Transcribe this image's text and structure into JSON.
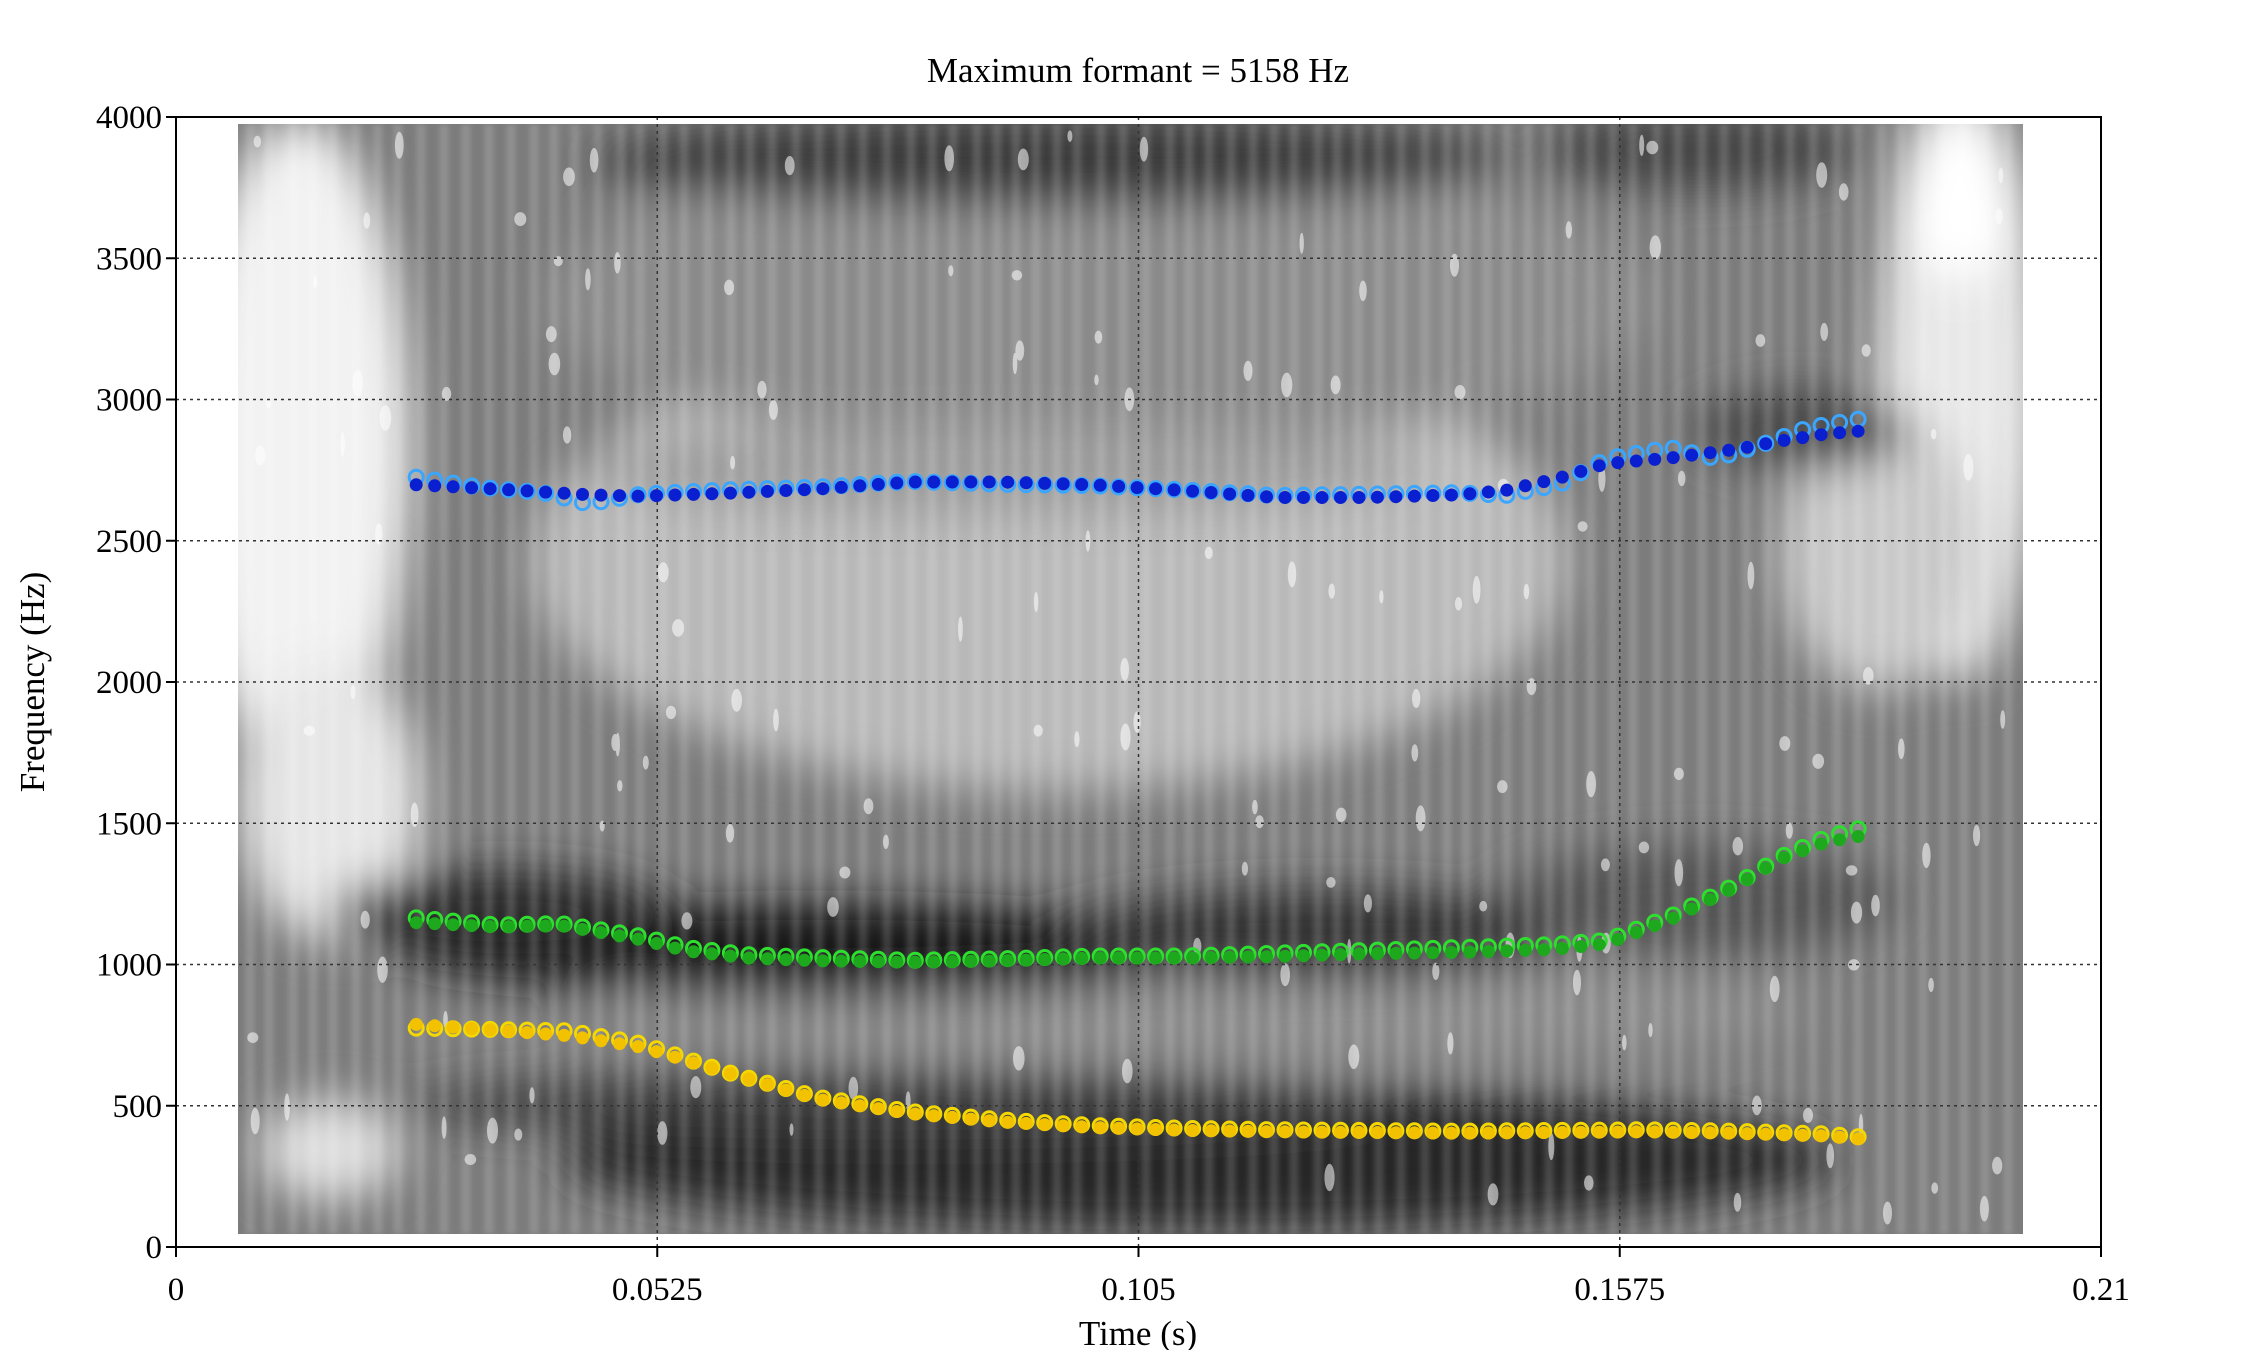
{
  "chart_data": {
    "type": "scatter",
    "title": "Maximum formant = 5158 Hz",
    "xlabel": "Time (s)",
    "ylabel": "Frequency (Hz)",
    "xlim": [
      0,
      0.21
    ],
    "ylim": [
      0,
      4000
    ],
    "x_ticks": [
      0,
      0.0525,
      0.105,
      0.1575,
      0.21
    ],
    "x_tick_labels": [
      "0",
      "0.0525",
      "0.105",
      "0.1575",
      "0.21"
    ],
    "y_ticks": [
      0,
      500,
      1000,
      1500,
      2000,
      2500,
      3000,
      3500,
      4000
    ],
    "y_tick_labels": [
      "0",
      "500",
      "1000",
      "1500",
      "2000",
      "2500",
      "3000",
      "3500",
      "4000"
    ],
    "grid": true,
    "background": "grayscale spectrogram",
    "frames": {
      "t_start": 0.0262,
      "t_end": 0.1835,
      "count": 79
    },
    "series": [
      {
        "formant": "F1",
        "marker": "open-circle",
        "color": "#f5d800",
        "x": [
          0.0262,
          0.0428,
          0.0507,
          0.06,
          0.07,
          0.08,
          0.09,
          0.1,
          0.11,
          0.12,
          0.14,
          0.16,
          0.17,
          0.18,
          0.1835
        ],
        "y": [
          775,
          765,
          720,
          620,
          530,
          480,
          450,
          430,
          420,
          415,
          410,
          415,
          410,
          400,
          390
        ]
      },
      {
        "formant": "F1",
        "marker": "filled-circle",
        "color": "#f2c200",
        "x": [
          0.0262,
          0.0428,
          0.0507,
          0.06,
          0.07,
          0.08,
          0.09,
          0.1,
          0.11,
          0.12,
          0.14,
          0.16,
          0.17,
          0.18,
          0.1835
        ],
        "y": [
          795,
          755,
          715,
          625,
          530,
          480,
          450,
          430,
          420,
          415,
          410,
          415,
          410,
          400,
          390
        ]
      },
      {
        "formant": "F2",
        "marker": "open-circle",
        "color": "#2de02d",
        "x": [
          0.0262,
          0.035,
          0.042,
          0.0507,
          0.0557,
          0.0623,
          0.07,
          0.08,
          0.09,
          0.1,
          0.11,
          0.12,
          0.13,
          0.14,
          0.15,
          0.156,
          0.163,
          0.17,
          0.175,
          0.18,
          0.1835
        ],
        "y": [
          1165,
          1140,
          1145,
          1100,
          1060,
          1035,
          1025,
          1015,
          1020,
          1030,
          1030,
          1040,
          1050,
          1060,
          1070,
          1085,
          1170,
          1280,
          1380,
          1450,
          1480
        ]
      },
      {
        "formant": "F2",
        "marker": "filled-circle",
        "color": "#1ea81e",
        "x": [
          0.0262,
          0.035,
          0.042,
          0.0507,
          0.0557,
          0.0623,
          0.07,
          0.08,
          0.09,
          0.1,
          0.11,
          0.12,
          0.13,
          0.14,
          0.15,
          0.156,
          0.163,
          0.17,
          0.175,
          0.18,
          0.1835
        ],
        "y": [
          1155,
          1140,
          1145,
          1095,
          1055,
          1030,
          1020,
          1015,
          1020,
          1030,
          1030,
          1035,
          1045,
          1050,
          1060,
          1080,
          1165,
          1280,
          1380,
          1440,
          1460
        ]
      },
      {
        "formant": "F3",
        "marker": "open-circle",
        "color": "#3aa6ff",
        "x": [
          0.0262,
          0.033,
          0.04,
          0.045,
          0.0507,
          0.06,
          0.07,
          0.08,
          0.09,
          0.1,
          0.11,
          0.12,
          0.13,
          0.14,
          0.145,
          0.151,
          0.156,
          0.163,
          0.168,
          0.173,
          0.178,
          0.1835
        ],
        "y": [
          2725,
          2690,
          2670,
          2630,
          2665,
          2680,
          2690,
          2710,
          2700,
          2695,
          2680,
          2660,
          2665,
          2670,
          2660,
          2700,
          2790,
          2830,
          2790,
          2840,
          2900,
          2930
        ]
      },
      {
        "formant": "F3",
        "marker": "filled-circle",
        "color": "#0a1fcf",
        "x": [
          0.0262,
          0.035,
          0.045,
          0.0507,
          0.06,
          0.07,
          0.08,
          0.09,
          0.1,
          0.11,
          0.12,
          0.13,
          0.14,
          0.145,
          0.151,
          0.156,
          0.163,
          0.17,
          0.175,
          0.18,
          0.1835
        ],
        "y": [
          2705,
          2690,
          2670,
          2665,
          2675,
          2690,
          2715,
          2715,
          2705,
          2685,
          2660,
          2660,
          2670,
          2685,
          2730,
          2780,
          2800,
          2830,
          2860,
          2885,
          2895
        ]
      }
    ]
  }
}
